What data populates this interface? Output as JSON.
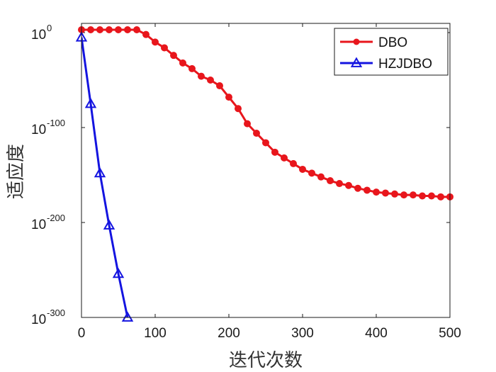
{
  "chart_data": {
    "type": "line",
    "title": "",
    "xlabel": "迭代次数",
    "ylabel": "适应度",
    "xlim": [
      0,
      500
    ],
    "ylim_log10": [
      -300,
      0
    ],
    "yscale": "log",
    "xticks": [
      "0",
      "100",
      "200",
      "300",
      "400",
      "500"
    ],
    "yticks": [
      {
        "base": "10",
        "exp": "0",
        "log10": 0
      },
      {
        "base": "10",
        "exp": "-100",
        "log10": -100
      },
      {
        "base": "10",
        "exp": "-200",
        "log10": -200
      },
      {
        "base": "10",
        "exp": "-300",
        "log10": -300
      }
    ],
    "legend_position": "top-right",
    "series": [
      {
        "name": "DBO",
        "color": "#e8161c",
        "marker": "circle",
        "x": [
          0,
          12.5,
          25,
          37.5,
          50,
          62.5,
          75,
          87.5,
          100,
          112.5,
          125,
          137.5,
          150,
          162.5,
          175,
          187.5,
          200,
          212.5,
          225,
          237.5,
          250,
          262.5,
          275,
          287.5,
          300,
          312.5,
          325,
          337.5,
          350,
          362.5,
          375,
          387.5,
          400,
          412.5,
          425,
          437.5,
          450,
          462.5,
          475,
          487.5,
          500
        ],
        "log10_values": [
          3,
          3,
          3,
          3,
          3,
          3,
          3,
          -2,
          -10,
          -16,
          -24,
          -32,
          -38,
          -46,
          -50,
          -56,
          -68,
          -80,
          -96,
          -106,
          -116,
          -126,
          -132,
          -138,
          -144,
          -148,
          -152,
          -156,
          -159,
          -161,
          -164,
          -166,
          -168,
          -169,
          -170,
          -171,
          -171,
          -172,
          -172,
          -173,
          -173
        ]
      },
      {
        "name": "HZJDBO",
        "color": "#1414e0",
        "marker": "triangle",
        "x": [
          0,
          12.5,
          25,
          37.5,
          50,
          62.5
        ],
        "log10_values": [
          -5,
          -75,
          -148,
          -203,
          -254,
          -300
        ]
      }
    ]
  }
}
